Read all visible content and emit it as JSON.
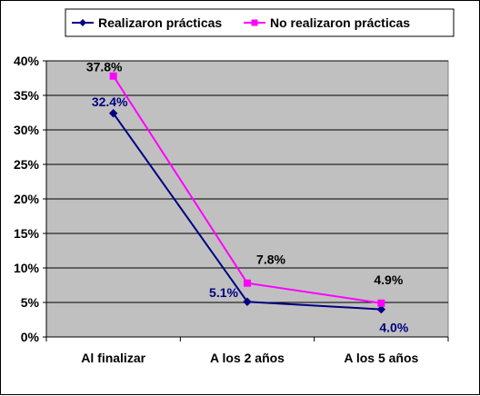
{
  "chart_data": {
    "type": "line",
    "categories": [
      "Al finalizar",
      "A los 2 años",
      "A los 5 años"
    ],
    "ylim": [
      0,
      40
    ],
    "yticks": [
      0,
      5,
      10,
      15,
      20,
      25,
      30,
      35,
      40
    ],
    "ytick_labels": [
      "0%",
      "5%",
      "10%",
      "15%",
      "20%",
      "25%",
      "30%",
      "35%",
      "40%"
    ],
    "grid": true,
    "plot_background": "#c0c0c0",
    "legend_position": "top",
    "series": [
      {
        "name": "Realizaron prácticas",
        "values": [
          32.4,
          5.1,
          4.0
        ],
        "labels": [
          "32.4%",
          "5.1%",
          "4.0%"
        ],
        "color": "#000080",
        "marker": "diamond"
      },
      {
        "name": "No realizaron prácticas",
        "values": [
          37.8,
          7.8,
          4.9
        ],
        "labels": [
          "37.8%",
          "7.8%",
          "4.9%"
        ],
        "color": "#ff00ff",
        "marker": "square"
      }
    ]
  }
}
